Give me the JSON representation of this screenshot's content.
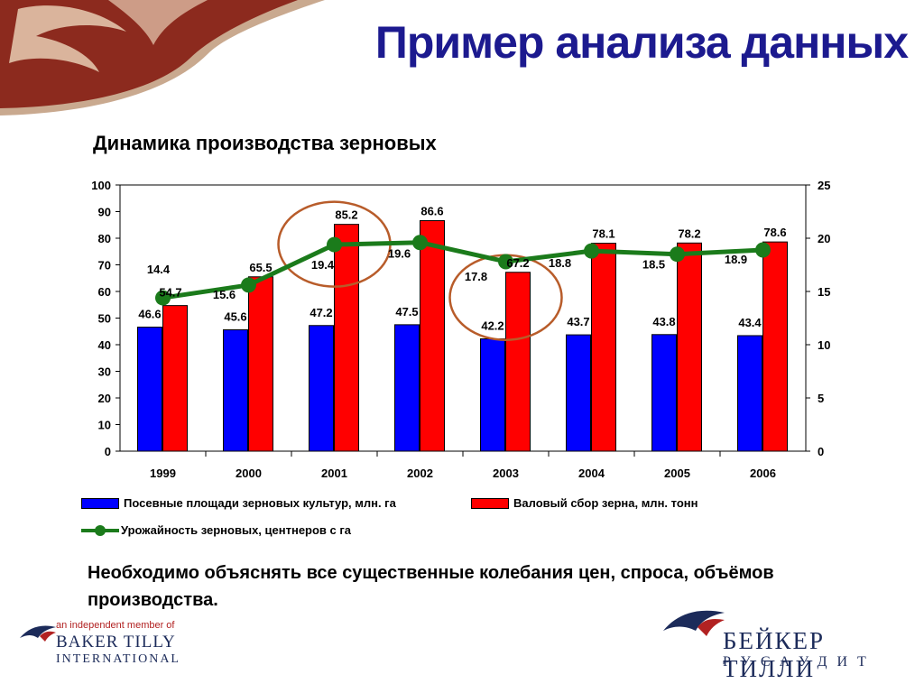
{
  "slide": {
    "title": "Пример анализа данных",
    "note": "Необходимо объяснять все существенные колебания цен, спроса, объёмов производства."
  },
  "legend": {
    "area": "Посевные площади зерновых культур, млн. га",
    "harvest": "Валовый сбор зерна, млн. тонн",
    "yield": "Урожайность зерновых, центнеров с га"
  },
  "logos": {
    "left_tagline": "an independent member of",
    "left_name1": "BAKER TILLY",
    "left_name2": "INTERNATIONAL",
    "right_name1": "БЕЙКЕР ТИЛЛИ",
    "right_name2": "РУСАУДИТ"
  },
  "colors": {
    "title": "#1c1a8f",
    "area_bar": "#0000ff",
    "harvest_bar": "#ff0000",
    "yield_line": "#1b7b1b",
    "highlight_circle": "#b85c2a"
  },
  "chart_data": {
    "type": "bar",
    "title": "Динамика производства зерновых",
    "categories": [
      "1999",
      "2000",
      "2001",
      "2002",
      "2003",
      "2004",
      "2005",
      "2006"
    ],
    "series": [
      {
        "name": "Посевные площади зерновых культур, млн. га",
        "kind": "bar",
        "axis": "left",
        "values": [
          46.6,
          45.6,
          47.2,
          47.5,
          42.2,
          43.7,
          43.8,
          43.4
        ],
        "labels": [
          "46.6",
          "45.6",
          "47.2",
          "47.5",
          "42.2",
          "43.7",
          "43.8",
          "43.4"
        ]
      },
      {
        "name": "Валовый сбор зерна, млн. тонн",
        "kind": "bar",
        "axis": "left",
        "values": [
          54.7,
          65.5,
          85.2,
          86.6,
          67.2,
          78.1,
          78.2,
          78.6
        ],
        "labels": [
          "54.7",
          "65.5",
          "85.2",
          "86.6",
          "67.2",
          "78.1",
          "78.2",
          "78.6"
        ]
      },
      {
        "name": "Урожайность зерновых, центнеров с га",
        "kind": "line",
        "axis": "right",
        "values": [
          14.4,
          15.6,
          19.4,
          19.6,
          17.8,
          18.8,
          18.5,
          18.9
        ],
        "labels": [
          "14.4",
          "15.6",
          "19.4",
          "19.6",
          "17.8",
          "18.8",
          "18.5",
          "18.9"
        ]
      }
    ],
    "y_left": {
      "min": 0,
      "max": 100,
      "ticks": [
        "0",
        "10",
        "20",
        "30",
        "40",
        "50",
        "60",
        "70",
        "80",
        "90",
        "100"
      ]
    },
    "y_right": {
      "min": 0,
      "max": 25,
      "ticks": [
        "0",
        "5",
        "10",
        "15",
        "20",
        "25"
      ]
    },
    "highlighted_categories": [
      "2001",
      "2003"
    ],
    "grid": false,
    "legend_position": "bottom"
  }
}
